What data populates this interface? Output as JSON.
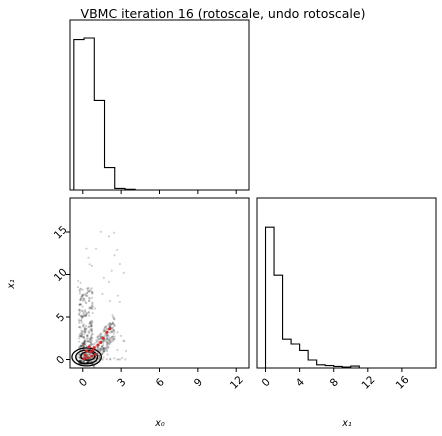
{
  "title": "VBMC iteration 16 (rotoscale, undo rotoscale)",
  "chart_data": [
    {
      "panel": "x0-marginal",
      "type": "histogram",
      "x_ticks": [
        "0",
        "3",
        "6",
        "9",
        "12"
      ],
      "xlim": [
        -1,
        13
      ],
      "bins": [
        -0.7,
        0.1,
        0.9,
        1.7,
        2.5,
        3.3,
        4.1
      ],
      "counts": [
        0.94,
        0.95,
        0.56,
        0.14,
        0.01,
        0.004
      ],
      "ylim": [
        0,
        1.0
      ],
      "y_ticks": [],
      "xlabel": ""
    },
    {
      "panel": "x1-marginal",
      "type": "histogram",
      "x_ticks": [
        "0",
        "4",
        "8",
        "12",
        "16"
      ],
      "xlim": [
        -1,
        20
      ],
      "bins": [
        0,
        1,
        2,
        3,
        4,
        5,
        6,
        7,
        8,
        9,
        10,
        11
      ],
      "counts": [
        0.88,
        0.58,
        0.18,
        0.15,
        0.11,
        0.05,
        0.02,
        0.015,
        0.01,
        0.006,
        0.012
      ],
      "ylim": [
        0,
        1.0
      ],
      "y_ticks": [],
      "xlabel": "x₁"
    },
    {
      "panel": "joint",
      "type": "scatter",
      "x_label": "x₀",
      "y_label": "x₁",
      "x_ticks": [
        "0",
        "3",
        "6",
        "9",
        "12"
      ],
      "y_ticks": [
        "0",
        "5",
        "10",
        "15"
      ],
      "xlim": [
        -1,
        13
      ],
      "ylim": [
        -1,
        19
      ],
      "contours": [
        {
          "cx": 0.3,
          "cy": 0.3,
          "rx": 1.15,
          "ry": 1.05
        },
        {
          "cx": 0.3,
          "cy": 0.3,
          "rx": 0.85,
          "ry": 0.8
        },
        {
          "cx": 0.4,
          "cy": 0.4,
          "rx": 0.55,
          "ry": 0.5
        }
      ],
      "red_points": [
        [
          0.2,
          0.5
        ],
        [
          0.4,
          0.2
        ],
        [
          0.6,
          0.9
        ],
        [
          0.9,
          1.4
        ],
        [
          0.1,
          0.1
        ],
        [
          1.2,
          1.7
        ],
        [
          0.7,
          0.4
        ],
        [
          1.6,
          2.5
        ],
        [
          1.9,
          3.2
        ],
        [
          0.3,
          1.0
        ],
        [
          1.0,
          0.6
        ],
        [
          0.5,
          1.5
        ],
        [
          2.1,
          3.6
        ],
        [
          1.4,
          2.0
        ],
        [
          0.8,
          1.1
        ]
      ]
    }
  ],
  "style": {
    "hist_color": "#000000",
    "points_color": "#000000",
    "red": "#d62728"
  }
}
